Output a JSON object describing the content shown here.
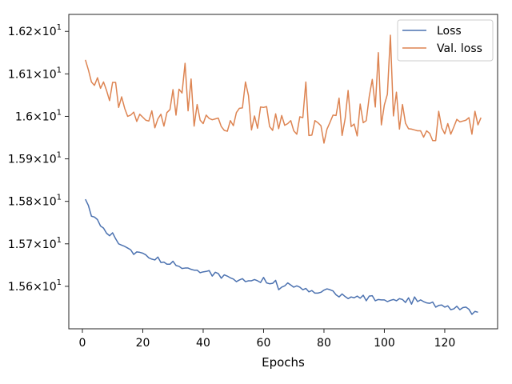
{
  "chart_data": {
    "type": "line",
    "xlabel": "Epochs",
    "ylabel": "",
    "title": "",
    "xlim": [
      -4.5,
      137.5
    ],
    "ylim": [
      15.5,
      16.24
    ],
    "grid": false,
    "legend_position": "top-right",
    "x_ticks": [
      0,
      20,
      40,
      60,
      80,
      100,
      120
    ],
    "x_tick_labels": [
      "0",
      "20",
      "40",
      "60",
      "80",
      "100",
      "120"
    ],
    "y_ticks": [
      15.6,
      15.7,
      15.8,
      15.9,
      16.0,
      16.1,
      16.2
    ],
    "y_tick_labels": [
      [
        "1.56",
        "1"
      ],
      [
        "1.57",
        "1"
      ],
      [
        "1.58",
        "1"
      ],
      [
        "1.59",
        "1"
      ],
      [
        "1.6",
        "1"
      ],
      [
        "1.61",
        "1"
      ],
      [
        "1.62",
        "1"
      ]
    ],
    "x_start": 1,
    "x_step": 1,
    "series": [
      {
        "name": "Loss",
        "color": "#4c72b0",
        "values": [
          15.805,
          15.79,
          15.765,
          15.763,
          15.757,
          15.742,
          15.737,
          15.725,
          15.719,
          15.726,
          15.712,
          15.7,
          15.697,
          15.694,
          15.69,
          15.686,
          15.675,
          15.681,
          15.68,
          15.678,
          15.674,
          15.667,
          15.664,
          15.662,
          15.669,
          15.656,
          15.657,
          15.652,
          15.652,
          15.659,
          15.649,
          15.647,
          15.642,
          15.643,
          15.643,
          15.64,
          15.638,
          15.638,
          15.632,
          15.634,
          15.635,
          15.637,
          15.624,
          15.633,
          15.63,
          15.619,
          15.627,
          15.624,
          15.62,
          15.617,
          15.611,
          15.615,
          15.618,
          15.611,
          15.613,
          15.613,
          15.616,
          15.613,
          15.609,
          15.621,
          15.608,
          15.606,
          15.607,
          15.614,
          15.592,
          15.598,
          15.601,
          15.608,
          15.603,
          15.598,
          15.601,
          15.598,
          15.592,
          15.595,
          15.587,
          15.59,
          15.584,
          15.584,
          15.586,
          15.591,
          15.594,
          15.592,
          15.589,
          15.58,
          15.575,
          15.582,
          15.576,
          15.571,
          15.575,
          15.573,
          15.577,
          15.572,
          15.579,
          15.566,
          15.577,
          15.578,
          15.566,
          15.569,
          15.568,
          15.568,
          15.564,
          15.567,
          15.569,
          15.566,
          15.571,
          15.569,
          15.562,
          15.573,
          15.558,
          15.575,
          15.564,
          15.568,
          15.564,
          15.561,
          15.56,
          15.563,
          15.551,
          15.555,
          15.556,
          15.551,
          15.554,
          15.545,
          15.547,
          15.553,
          15.545,
          15.55,
          15.551,
          15.546,
          15.534,
          15.541,
          15.539
        ]
      },
      {
        "name": "Val. loss",
        "color": "#dd8452",
        "values": [
          16.133,
          16.109,
          16.081,
          16.073,
          16.091,
          16.066,
          16.081,
          16.061,
          16.037,
          16.08,
          16.08,
          16.021,
          16.046,
          16.019,
          16.0,
          16.003,
          16.01,
          15.988,
          16.005,
          15.998,
          15.991,
          15.989,
          16.013,
          15.973,
          15.994,
          16.005,
          15.977,
          16.009,
          16.016,
          16.063,
          16.003,
          16.064,
          16.055,
          16.125,
          16.013,
          16.088,
          15.977,
          16.028,
          15.991,
          15.983,
          16.003,
          15.995,
          15.992,
          15.994,
          15.996,
          15.976,
          15.967,
          15.965,
          15.99,
          15.978,
          16.009,
          16.019,
          16.02,
          16.081,
          16.049,
          15.968,
          16.001,
          15.972,
          16.022,
          16.021,
          16.023,
          15.976,
          15.967,
          16.006,
          15.971,
          16.002,
          15.979,
          15.983,
          15.99,
          15.966,
          15.958,
          15.999,
          15.997,
          16.081,
          15.955,
          15.956,
          15.99,
          15.985,
          15.978,
          15.937,
          15.97,
          15.986,
          16.003,
          16.002,
          16.043,
          15.955,
          15.994,
          16.061,
          15.976,
          15.982,
          15.954,
          16.029,
          15.985,
          15.99,
          16.047,
          16.087,
          16.022,
          16.15,
          15.98,
          16.027,
          16.052,
          16.191,
          16.001,
          16.057,
          15.97,
          16.028,
          15.984,
          15.971,
          15.97,
          15.968,
          15.966,
          15.966,
          15.951,
          15.966,
          15.96,
          15.943,
          15.943,
          16.012,
          15.973,
          15.959,
          15.983,
          15.958,
          15.975,
          15.993,
          15.987,
          15.989,
          15.991,
          15.997,
          15.958,
          16.012,
          15.98,
          15.997
        ]
      }
    ]
  }
}
